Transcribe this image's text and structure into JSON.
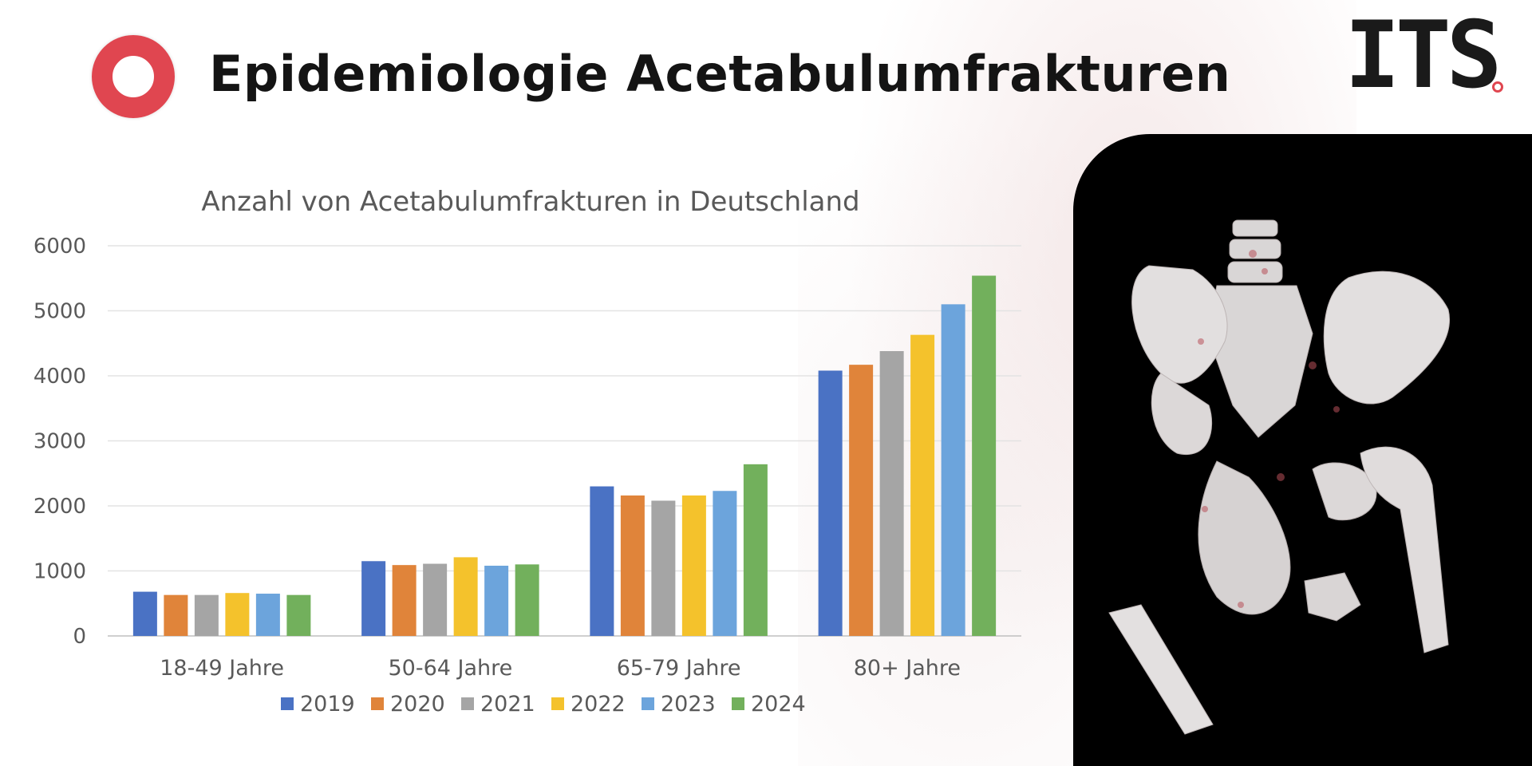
{
  "header": {
    "title": "Epidemiologie Acetabulumfrakturen",
    "brand": "ITS",
    "brand_color": "#e04650"
  },
  "image_panel": {
    "icon": "pelvis-fracture-ct-image"
  },
  "chart_data": {
    "type": "bar",
    "title": "Anzahl von Acetabulumfrakturen in Deutschland",
    "categories": [
      "18-49 Jahre",
      "50-64 Jahre",
      "65-79 Jahre",
      "80+ Jahre"
    ],
    "series": [
      {
        "name": "2019",
        "color": "#4a72c4",
        "values": [
          680,
          1150,
          2300,
          4080
        ]
      },
      {
        "name": "2020",
        "color": "#e0843a",
        "values": [
          630,
          1090,
          2160,
          4170
        ]
      },
      {
        "name": "2021",
        "color": "#a5a5a5",
        "values": [
          630,
          1110,
          2080,
          4380
        ]
      },
      {
        "name": "2022",
        "color": "#f4c22c",
        "values": [
          660,
          1210,
          2160,
          4630
        ]
      },
      {
        "name": "2023",
        "color": "#6ca4dc",
        "values": [
          650,
          1080,
          2230,
          5100
        ]
      },
      {
        "name": "2024",
        "color": "#72b05c",
        "values": [
          630,
          1100,
          2640,
          5540
        ]
      }
    ],
    "yticks": [
      0,
      1000,
      2000,
      3000,
      4000,
      5000,
      6000
    ],
    "ylim": [
      0,
      6000
    ],
    "grid": true,
    "legend": "bottom"
  }
}
